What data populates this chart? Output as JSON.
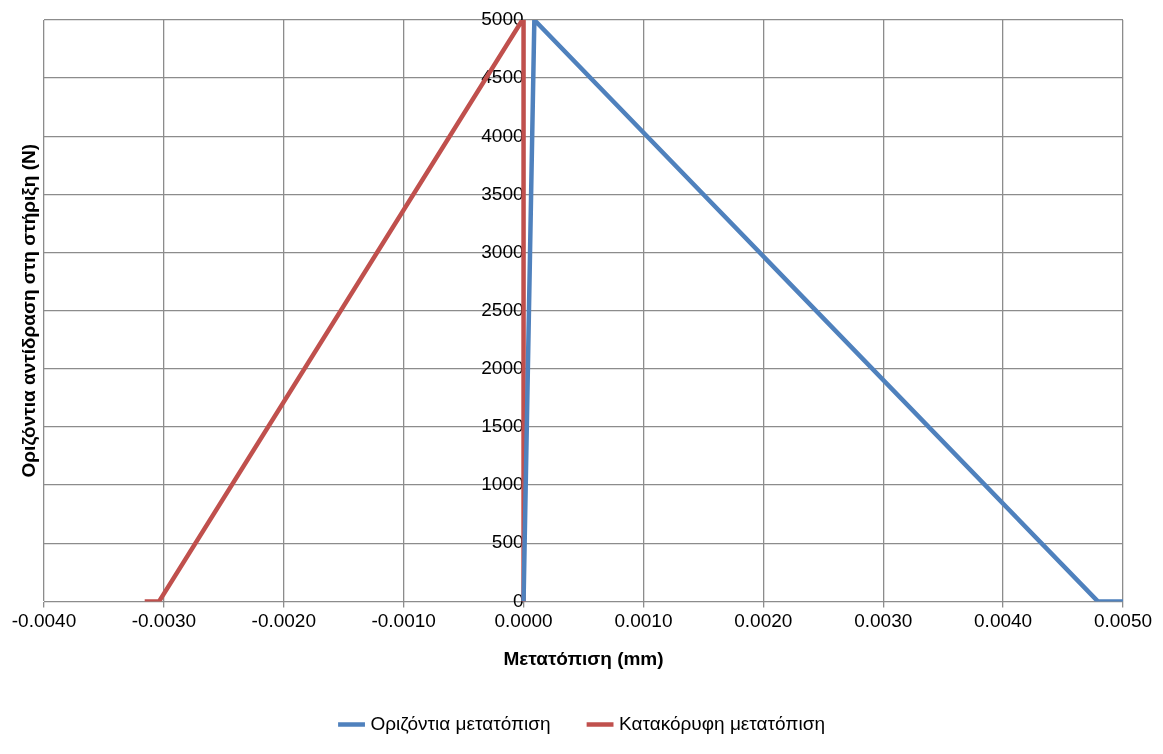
{
  "chart_data": {
    "type": "line",
    "xlabel": "Μετατόπιση (mm)",
    "ylabel": "Οριζόντια αντίδραση στη στήριξη (N)",
    "series": [
      {
        "name": "Οριζόντια μετατόπιση",
        "color": "#4f81bd",
        "x": [
          0.0,
          9e-05,
          0.00479,
          0.005
        ],
        "values": [
          0,
          5000,
          0,
          0
        ]
      },
      {
        "name": "Κατακόρυφη μετατόπιση",
        "color": "#c0504d",
        "x": [
          -0.00316,
          -0.00304,
          -1e-05,
          0.0,
          0.0
        ],
        "values": [
          0,
          0,
          5000,
          5000,
          0
        ]
      }
    ],
    "xlim": [
      -0.004,
      0.005
    ],
    "xticks": [
      {
        "value": -0.004,
        "label": "-0.0040"
      },
      {
        "value": -0.003,
        "label": "-0.0030"
      },
      {
        "value": -0.002,
        "label": "-0.0020"
      },
      {
        "value": -0.001,
        "label": "-0.0010"
      },
      {
        "value": 0,
        "label": "0.0000"
      },
      {
        "value": 0.001,
        "label": "0.0010"
      },
      {
        "value": 0.002,
        "label": "0.0020"
      },
      {
        "value": 0.003,
        "label": "0.0030"
      },
      {
        "value": 0.004,
        "label": "0.0040"
      },
      {
        "value": 0.005,
        "label": "0.0050"
      }
    ],
    "ylim": [
      0,
      5000
    ],
    "yticks": [
      0,
      500,
      1000,
      1500,
      2000,
      2500,
      3000,
      3500,
      4000,
      4500,
      5000
    ],
    "grid": true,
    "legend": "bottom",
    "marker": "none",
    "line_style": "solid"
  }
}
